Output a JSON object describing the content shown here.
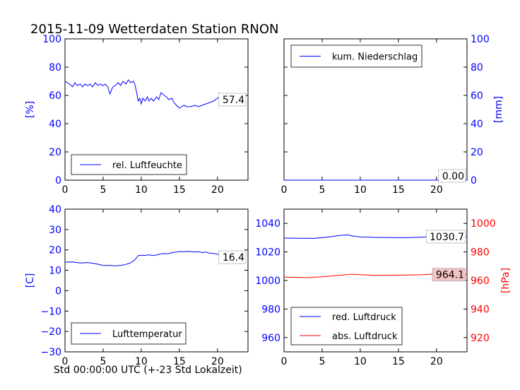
{
  "figure": {
    "title": "2015-11-09 Wetterdaten Station RNON",
    "xlabel": "Std 00:00:00 UTC (+-23 Std Lokalzeit)"
  },
  "colors": {
    "blue": "#0000ff",
    "red": "#ff0000",
    "black": "#000000"
  },
  "chart_data": [
    {
      "type": "line",
      "title": "",
      "xlabel": "",
      "ylabel": "[%]",
      "xlim": [
        0,
        24
      ],
      "ylim": [
        0,
        100
      ],
      "xticks": [
        0,
        5,
        10,
        15,
        20
      ],
      "yticks": [
        0,
        20,
        40,
        60,
        80,
        100
      ],
      "grid": false,
      "legend": "lower-left",
      "last_value_label": "57.4",
      "series": [
        {
          "name": "rel. Luftfeuchte",
          "color": "#0000ff",
          "x": [
            0,
            0.3,
            0.6,
            1,
            1.3,
            1.6,
            2,
            2.3,
            2.6,
            3,
            3.3,
            3.6,
            4,
            4.3,
            4.6,
            5,
            5.3,
            5.6,
            5.9,
            6.1,
            6.3,
            6.6,
            7,
            7.3,
            7.6,
            8,
            8.3,
            8.6,
            9,
            9.2,
            9.4,
            9.6,
            9.8,
            10,
            10.2,
            10.5,
            10.8,
            11,
            11.3,
            11.6,
            12,
            12.3,
            12.6,
            13,
            13.3,
            13.6,
            14,
            14.3,
            14.6,
            15,
            15.3,
            15.6,
            16,
            16.5,
            17,
            17.5,
            18,
            18.5,
            19,
            19.5,
            20,
            20.5,
            21,
            21.5,
            22,
            22.5,
            23,
            23.5
          ],
          "y": [
            70,
            69,
            68,
            66,
            69,
            67,
            68,
            66,
            68,
            67,
            68,
            66,
            69,
            67,
            68,
            67,
            68,
            66,
            61,
            64,
            66,
            67,
            69,
            67,
            70,
            68,
            71,
            69,
            70,
            67,
            62,
            56,
            58,
            54,
            58,
            56,
            59,
            56,
            58,
            56,
            59,
            57,
            62,
            60,
            59,
            57,
            58,
            55,
            53,
            51,
            52,
            53,
            52,
            52,
            53,
            52,
            53,
            54,
            55,
            56,
            58,
            59,
            59,
            60,
            60,
            58,
            57,
            57
          ]
        }
      ]
    },
    {
      "type": "line",
      "title": "",
      "xlabel": "",
      "ylabel": "[mm]",
      "xlim": [
        0,
        24
      ],
      "ylim": [
        0,
        100
      ],
      "xticks": [
        0,
        5,
        10,
        15,
        20
      ],
      "yticks": [
        0,
        20,
        40,
        60,
        80,
        100
      ],
      "grid": false,
      "legend": "top-left",
      "last_value_label": "0.00",
      "series": [
        {
          "name": "kum. Niederschlag",
          "color": "#0000ff",
          "x": [
            0,
            24
          ],
          "y": [
            0,
            0
          ]
        }
      ]
    },
    {
      "type": "line",
      "title": "",
      "xlabel": "",
      "ylabel": "[C]",
      "xlim": [
        0,
        24
      ],
      "ylim": [
        -30,
        40
      ],
      "xticks": [
        0,
        5,
        10,
        15,
        20
      ],
      "yticks": [
        -30,
        -20,
        -10,
        0,
        10,
        20,
        30,
        40
      ],
      "grid": false,
      "legend": "lower-left",
      "last_value_label": "16.4",
      "series": [
        {
          "name": "Lufttemperatur",
          "color": "#0000ff",
          "x": [
            0,
            1,
            2,
            3,
            4,
            4.5,
            5,
            5.5,
            6,
            6.5,
            7,
            7.5,
            8,
            8.5,
            9,
            9.3,
            9.6,
            10,
            10.5,
            11,
            11.5,
            12,
            12.5,
            13,
            13.5,
            14,
            14.5,
            15,
            15.5,
            16,
            16.5,
            17,
            17.5,
            18,
            18.5,
            19,
            19.5,
            20,
            20.5,
            21,
            21.5,
            22,
            22.5,
            23,
            23.5
          ],
          "y": [
            14,
            14.1,
            13.6,
            13.8,
            13.2,
            12.8,
            12.4,
            12.3,
            12.4,
            12.2,
            12.3,
            12.5,
            12.9,
            13.5,
            14.6,
            15.8,
            17.2,
            17.4,
            17.3,
            17.6,
            17.2,
            17.5,
            18,
            18.2,
            18.1,
            18.6,
            18.9,
            19.2,
            19.1,
            19.3,
            19.2,
            19,
            19.1,
            18.7,
            18.9,
            18.4,
            18.2,
            17.9,
            17.6,
            17.4,
            17.1,
            16.8,
            16.7,
            16.5,
            16.4
          ]
        }
      ]
    },
    {
      "type": "line",
      "title": "",
      "xlabel": "",
      "ylabel": "[hPa]",
      "xlim": [
        0,
        24
      ],
      "ylim": [
        950,
        1050
      ],
      "ylim_right": [
        910,
        1010
      ],
      "xticks": [
        0,
        5,
        10,
        15,
        20
      ],
      "yticks": [
        960,
        980,
        1000,
        1020,
        1040
      ],
      "yticks_right": [
        920,
        940,
        960,
        980,
        1000
      ],
      "grid": false,
      "legend": "lower-left",
      "last_value_labels": [
        "1030.7",
        "964.1"
      ],
      "series": [
        {
          "name": "red. Luftdruck",
          "color": "#0000ff",
          "axis": "left",
          "x": [
            0,
            2,
            4,
            6,
            7,
            8,
            8.5,
            9,
            10,
            12,
            14,
            16,
            18,
            20,
            22,
            24
          ],
          "y": [
            1029.7,
            1029.6,
            1029.5,
            1030.6,
            1031.4,
            1031.9,
            1031.8,
            1031.2,
            1030.5,
            1030.2,
            1030.1,
            1030,
            1030.3,
            1030.8,
            1031.2,
            1030.7
          ]
        },
        {
          "name": "abs. Luftdruck",
          "color": "#ff0000",
          "axis": "right",
          "x": [
            0,
            2,
            3,
            4,
            6,
            8,
            9,
            10,
            12,
            14,
            16,
            18,
            20,
            22,
            24
          ],
          "y": [
            962.4,
            962.2,
            962,
            962.3,
            963,
            964,
            964.3,
            964.1,
            963.6,
            963.7,
            963.8,
            964,
            964.6,
            965.2,
            964.1
          ]
        }
      ]
    }
  ]
}
